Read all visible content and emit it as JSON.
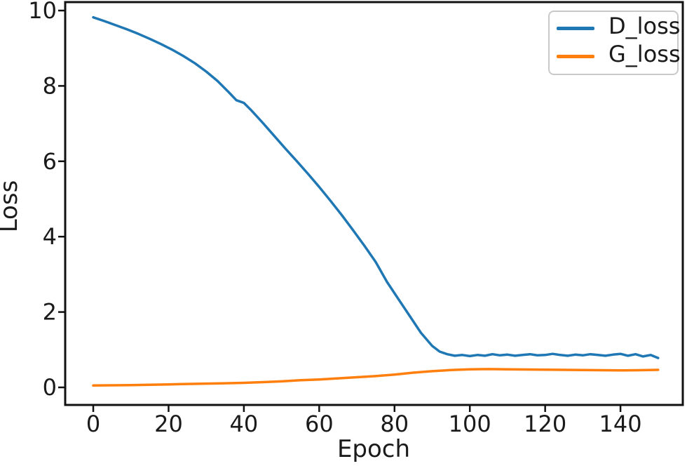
{
  "chart_data": {
    "type": "line",
    "title": "",
    "xlabel": "Epoch",
    "ylabel": "Loss",
    "xlim": [
      -7.45,
      156.55
    ],
    "ylim": [
      -0.466,
      10.224
    ],
    "x_ticks": [
      0,
      20,
      40,
      60,
      80,
      100,
      120,
      140
    ],
    "y_ticks": [
      0,
      2,
      4,
      6,
      8,
      10
    ],
    "x_tick_labels": [
      "0",
      "20",
      "40",
      "60",
      "80",
      "100",
      "120",
      "140"
    ],
    "y_tick_labels": [
      "0",
      "2",
      "4",
      "6",
      "8",
      "10"
    ],
    "grid": false,
    "legend_position": "upper right",
    "series": [
      {
        "name": "D_loss",
        "color": "#1f77b4",
        "x": [
          0,
          3,
          6,
          9,
          12,
          15,
          18,
          21,
          24,
          27,
          30,
          33,
          36,
          38,
          40,
          42,
          45,
          48,
          51,
          54,
          57,
          60,
          63,
          66,
          69,
          72,
          75,
          78,
          81,
          84,
          87,
          90,
          92,
          94,
          96,
          98,
          100,
          102,
          104,
          106,
          108,
          110,
          112,
          114,
          116,
          118,
          120,
          122,
          124,
          126,
          128,
          130,
          132,
          134,
          136,
          138,
          140,
          142,
          144,
          146,
          148,
          150
        ],
        "y": [
          9.82,
          9.72,
          9.61,
          9.5,
          9.38,
          9.25,
          9.11,
          8.96,
          8.79,
          8.6,
          8.38,
          8.13,
          7.83,
          7.62,
          7.55,
          7.35,
          7.02,
          6.68,
          6.34,
          6.01,
          5.67,
          5.32,
          4.95,
          4.57,
          4.17,
          3.76,
          3.33,
          2.8,
          2.35,
          1.9,
          1.45,
          1.1,
          0.95,
          0.88,
          0.84,
          0.86,
          0.83,
          0.86,
          0.84,
          0.88,
          0.85,
          0.87,
          0.84,
          0.86,
          0.88,
          0.85,
          0.86,
          0.89,
          0.86,
          0.84,
          0.87,
          0.85,
          0.88,
          0.86,
          0.84,
          0.87,
          0.89,
          0.84,
          0.88,
          0.82,
          0.86,
          0.78
        ]
      },
      {
        "name": "G_loss",
        "color": "#ff7f0e",
        "x": [
          0,
          5,
          10,
          15,
          20,
          25,
          30,
          35,
          40,
          45,
          50,
          55,
          60,
          65,
          70,
          75,
          80,
          85,
          90,
          95,
          100,
          105,
          110,
          115,
          120,
          125,
          130,
          135,
          140,
          145,
          150
        ],
        "y": [
          0.05,
          0.055,
          0.06,
          0.07,
          0.08,
          0.09,
          0.1,
          0.11,
          0.12,
          0.14,
          0.16,
          0.19,
          0.21,
          0.24,
          0.27,
          0.3,
          0.34,
          0.39,
          0.43,
          0.46,
          0.48,
          0.485,
          0.48,
          0.475,
          0.47,
          0.465,
          0.46,
          0.455,
          0.45,
          0.455,
          0.465
        ]
      }
    ]
  },
  "colors": {
    "spine": "#111111",
    "tick": "#1a1a1a",
    "text": "#1a1a1a",
    "background": "#ffffff",
    "legend_border": "#c9c9c9"
  }
}
